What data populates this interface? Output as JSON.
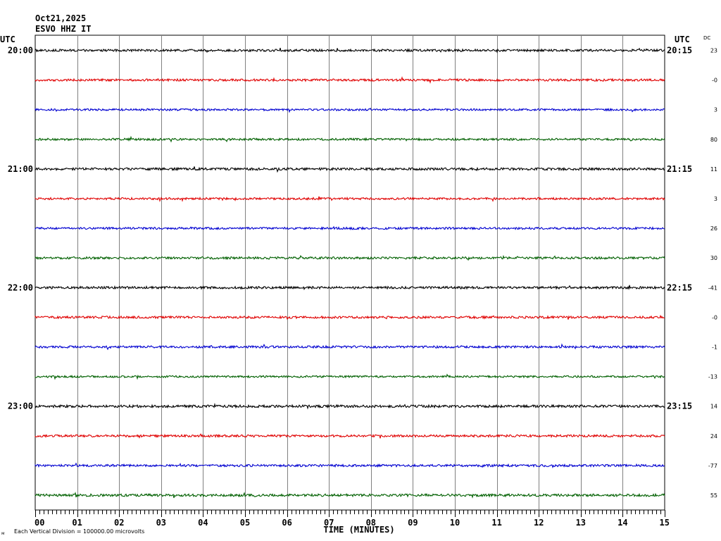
{
  "header": {
    "date": "Oct21,2025",
    "station": "ESVO HHZ IT",
    "utc_left": "UTC",
    "utc_right": "UTC",
    "dc_label": "DC"
  },
  "footer": {
    "scale_note": "Each Vertical Division = 100000.00 microvolts",
    "corner_mark": "ᴍ"
  },
  "chart_data": {
    "type": "line",
    "title": "",
    "xlabel": "TIME (MINUTES)",
    "ylabel": "",
    "xlim": [
      0,
      15
    ],
    "grid": true,
    "x_ticks": [
      "00",
      "01",
      "02",
      "03",
      "04",
      "05",
      "06",
      "07",
      "08",
      "09",
      "10",
      "11",
      "12",
      "13",
      "14",
      "15"
    ],
    "trace_colors": [
      "#000000",
      "#e00000",
      "#0000d0",
      "#006000"
    ],
    "traces": [
      {
        "left_label": "20:00",
        "right_label": "20:15",
        "dc": "23",
        "amp": 1.6,
        "seed": 11
      },
      {
        "left_label": "",
        "right_label": "",
        "dc": "-0",
        "amp": 1.6,
        "seed": 12
      },
      {
        "left_label": "",
        "right_label": "",
        "dc": "3",
        "amp": 1.4,
        "seed": 13
      },
      {
        "left_label": "",
        "right_label": "",
        "dc": "80",
        "amp": 1.5,
        "seed": 14
      },
      {
        "left_label": "21:00",
        "right_label": "21:15",
        "dc": "11",
        "amp": 1.7,
        "seed": 15
      },
      {
        "left_label": "",
        "right_label": "",
        "dc": "3",
        "amp": 1.5,
        "seed": 16
      },
      {
        "left_label": "",
        "right_label": "",
        "dc": "26",
        "amp": 1.5,
        "seed": 17
      },
      {
        "left_label": "",
        "right_label": "",
        "dc": "30",
        "amp": 1.6,
        "seed": 18
      },
      {
        "left_label": "22:00",
        "right_label": "22:15",
        "dc": "-41",
        "amp": 1.7,
        "seed": 19
      },
      {
        "left_label": "",
        "right_label": "",
        "dc": "-0",
        "amp": 1.6,
        "seed": 20
      },
      {
        "left_label": "",
        "right_label": "",
        "dc": "-1",
        "amp": 1.6,
        "seed": 21
      },
      {
        "left_label": "",
        "right_label": "",
        "dc": "-13",
        "amp": 1.4,
        "seed": 22
      },
      {
        "left_label": "23:00",
        "right_label": "23:15",
        "dc": "14",
        "amp": 1.8,
        "seed": 23
      },
      {
        "left_label": "",
        "right_label": "",
        "dc": "24",
        "amp": 1.6,
        "seed": 24
      },
      {
        "left_label": "",
        "right_label": "",
        "dc": "-77",
        "amp": 1.6,
        "seed": 25
      },
      {
        "left_label": "",
        "right_label": "",
        "dc": "55",
        "amp": 1.8,
        "seed": 26
      }
    ]
  }
}
